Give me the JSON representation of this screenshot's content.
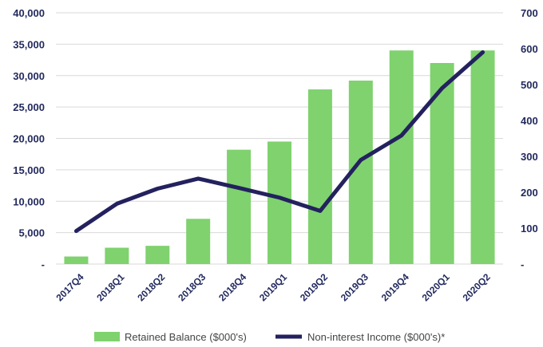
{
  "chart_data": {
    "type": "bar+line",
    "categories": [
      "2017Q4",
      "2018Q1",
      "2018Q2",
      "2018Q3",
      "2018Q4",
      "2019Q1",
      "2019Q2",
      "2019Q3",
      "2019Q4",
      "2020Q1",
      "2020Q2"
    ],
    "series": [
      {
        "name": "Retained Balance ($000's)",
        "type": "bar",
        "axis": "left",
        "color": "#7fd26e",
        "values": [
          1200,
          2600,
          2900,
          7200,
          18200,
          19500,
          27800,
          29200,
          34000,
          32000,
          34000
        ]
      },
      {
        "name": "Non-interest Income ($000's)*",
        "type": "line",
        "axis": "right",
        "color": "#23215e",
        "values": [
          92,
          168,
          210,
          238,
          212,
          185,
          148,
          290,
          358,
          490,
          590
        ]
      }
    ],
    "y_left": {
      "min": 0,
      "max": 40000,
      "ticks": [
        0,
        5000,
        10000,
        15000,
        20000,
        25000,
        30000,
        35000,
        40000
      ],
      "tick_labels": [
        "-",
        "5,000",
        "10,000",
        "15,000",
        "20,000",
        "25,000",
        "30,000",
        "35,000",
        "40,000"
      ]
    },
    "y_right": {
      "min": 0,
      "max": 700,
      "ticks": [
        0,
        100,
        200,
        300,
        400,
        500,
        600,
        700
      ],
      "tick_labels": [
        "-",
        "100",
        "200",
        "300",
        "400",
        "500",
        "600",
        "700"
      ]
    },
    "grid": true,
    "legend": "bottom",
    "colors": {
      "gridline": "#d9d9d9",
      "text": "#222a5e"
    }
  }
}
